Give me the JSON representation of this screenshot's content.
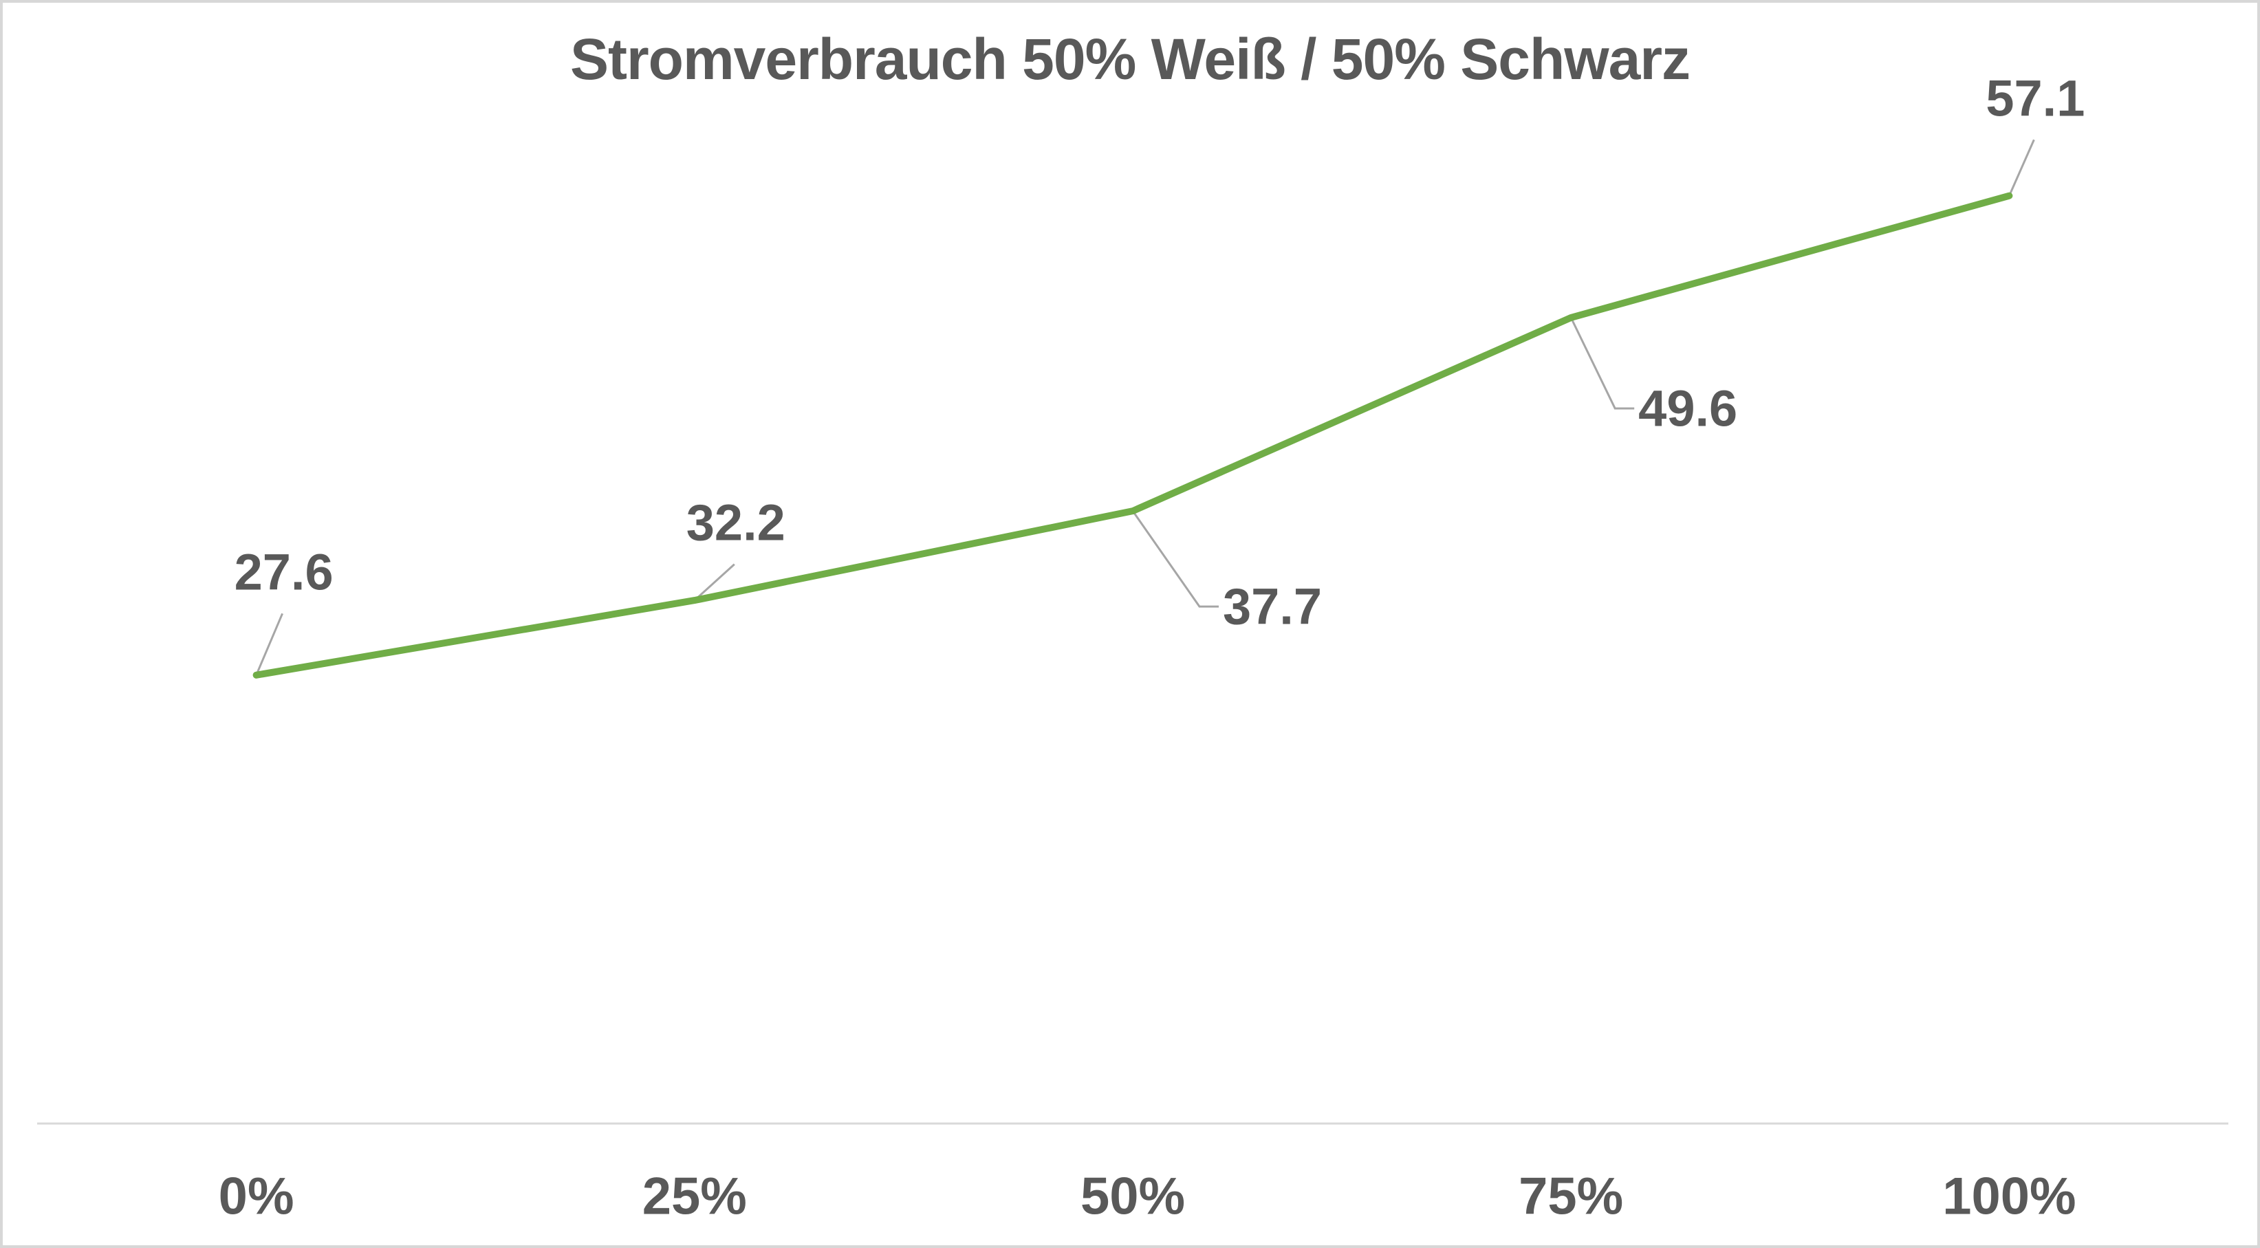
{
  "chart": {
    "title": "Stromverbrauch 50% Weiß / 50% Schwarz"
  },
  "colors": {
    "line": "#70AD47",
    "text": "#595959",
    "leader": "#A6A6A6",
    "axis_line": "#D9D9D9",
    "frame_border": "#D7D7D7",
    "background": "#FFFFFF"
  },
  "chart_data": {
    "type": "line",
    "title": "Stromverbrauch 50% Weiß / 50% Schwarz",
    "categories": [
      "0%",
      "25%",
      "50%",
      "75%",
      "100%"
    ],
    "values": [
      27.6,
      32.2,
      37.7,
      49.6,
      57.1
    ],
    "data_labels": [
      "27.6",
      "32.2",
      "37.7",
      "49.6",
      "57.1"
    ],
    "xlabel": "",
    "ylabel": "",
    "ylim": [
      0,
      69
    ],
    "grid": false,
    "legend": "none",
    "line_color": "#70AD47",
    "label_placements": [
      {
        "callout": "straight",
        "offset": [
          40,
          -150
        ]
      },
      {
        "callout": "straight",
        "offset": [
          60,
          -113
        ]
      },
      {
        "callout": "elbow",
        "offset": [
          203,
          139
        ]
      },
      {
        "callout": "elbow",
        "offset": [
          170,
          132
        ]
      },
      {
        "callout": "straight",
        "offset": [
          38,
          -142
        ]
      }
    ]
  }
}
